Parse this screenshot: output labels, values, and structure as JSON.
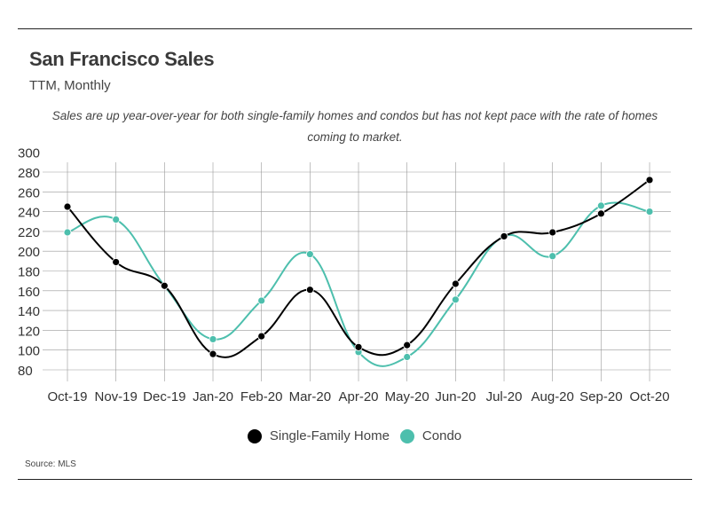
{
  "title": "San Francisco Sales",
  "subtitle": "TTM, Monthly",
  "note": "Sales are up year-over-year for both single-family homes and condos but has not kept pace with the rate of homes coming to market.",
  "source": "Source:  MLS",
  "colors": {
    "single_family": "#000000",
    "condo": "#4dbfad",
    "grid": "#999999",
    "text": "#333333"
  },
  "chart_data": {
    "type": "line",
    "categories": [
      "Oct-19",
      "Nov-19",
      "Dec-19",
      "Jan-20",
      "Feb-20",
      "Mar-20",
      "Apr-20",
      "May-20",
      "Jun-20",
      "Jul-20",
      "Aug-20",
      "Sep-20",
      "Oct-20"
    ],
    "series": [
      {
        "name": "Single-Family Home",
        "color": "#000000",
        "values": [
          245,
          189,
          165,
          96,
          114,
          161,
          103,
          105,
          167,
          215,
          219,
          238,
          272
        ]
      },
      {
        "name": "Condo",
        "color": "#4dbfad",
        "values": [
          219,
          232,
          165,
          111,
          150,
          197,
          98,
          93,
          151,
          215,
          195,
          246,
          240
        ]
      }
    ],
    "yticks": [
      80,
      100,
      120,
      140,
      160,
      180,
      200,
      220,
      240,
      260,
      280,
      300
    ],
    "ylim": [
      80,
      300
    ],
    "grid": true,
    "legend": "bottom-center",
    "title": "San Francisco Sales",
    "xlabel": "",
    "ylabel": ""
  }
}
